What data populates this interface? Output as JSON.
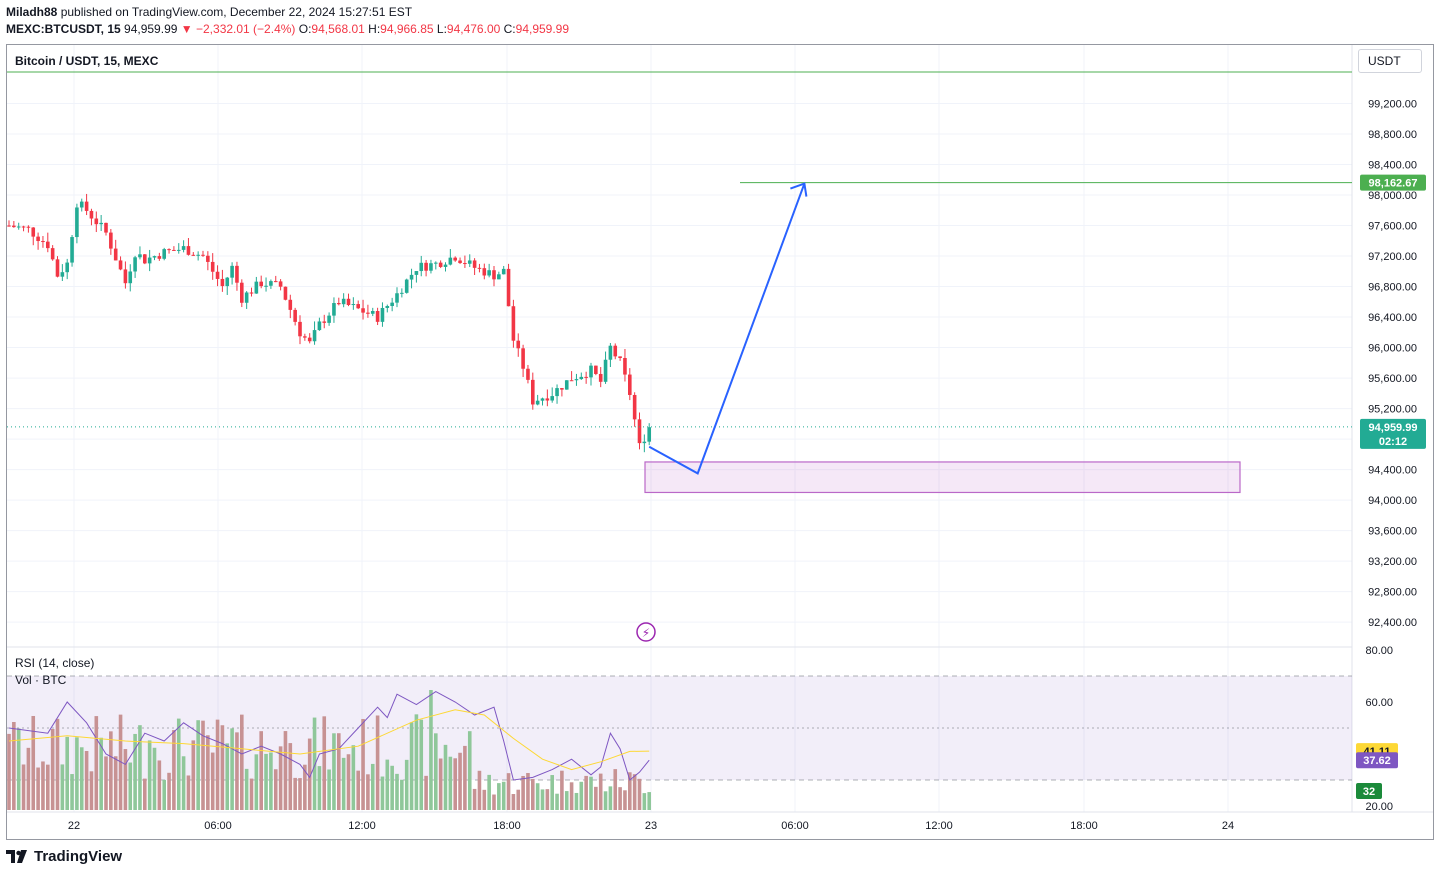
{
  "header": {
    "author": "Miladh88",
    "published": "published on TradingView.com, December 22, 2024 15:27:51 EST",
    "symbol": "MEXC:BTCUSDT, 15",
    "last": "94,959.99",
    "change": "−2,332.01 (−2.4%)",
    "o_label": "O:",
    "o": "94,568.01",
    "h_label": "H:",
    "h": "94,966.85",
    "l_label": "L:",
    "l": "94,476.00",
    "c_label": "C:",
    "c": "94,959.99"
  },
  "legend": {
    "title": "Bitcoin / USDT, 15, MEXC",
    "currency": "USDT"
  },
  "indicators": {
    "rsi": "RSI (14, close)",
    "vol": "Vol · BTC"
  },
  "price_labels": {
    "target": "98,162.67",
    "current": "94,959.99",
    "countdown": "02:12"
  },
  "rsi_labels": {
    "ma": "41.11",
    "rsi": "37.62",
    "vol": "32"
  },
  "footer": {
    "brand": "TradingView"
  },
  "colors": {
    "up": "#22ab94",
    "down": "#f23645",
    "drawing": "#2962ff",
    "box": "#ba68c8",
    "target_line": "#4caf50",
    "rsi_line": "#7e57c2",
    "rsi_ma": "#fdd835"
  },
  "chart_data": [
    {
      "type": "candlestick",
      "title": "Bitcoin / USDT, 15, MEXC",
      "x_ticks": [
        "22",
        "06:00",
        "12:00",
        "18:00",
        "23",
        "06:00",
        "12:00",
        "18:00",
        "24"
      ],
      "y_ticks": [
        92400,
        92800,
        93200,
        93600,
        94000,
        94400,
        94800,
        95200,
        95600,
        96000,
        96400,
        96800,
        97200,
        97600,
        98000,
        98400,
        98800,
        99200
      ],
      "ylim": [
        92100,
        99600
      ],
      "close_path": [
        [
          0,
          97600
        ],
        [
          4,
          97550
        ],
        [
          8,
          97350
        ],
        [
          10,
          96950
        ],
        [
          12,
          97100
        ],
        [
          14,
          97900
        ],
        [
          16,
          97800
        ],
        [
          20,
          97500
        ],
        [
          24,
          96850
        ],
        [
          26,
          97250
        ],
        [
          28,
          97150
        ],
        [
          32,
          97250
        ],
        [
          36,
          97300
        ],
        [
          40,
          97200
        ],
        [
          44,
          96800
        ],
        [
          46,
          97050
        ],
        [
          48,
          96650
        ],
        [
          52,
          96850
        ],
        [
          56,
          96800
        ],
        [
          60,
          96200
        ],
        [
          62,
          96050
        ],
        [
          64,
          96300
        ],
        [
          68,
          96600
        ],
        [
          72,
          96500
        ],
        [
          76,
          96400
        ],
        [
          80,
          96700
        ],
        [
          84,
          97050
        ],
        [
          88,
          97100
        ],
        [
          92,
          97200
        ],
        [
          96,
          97050
        ],
        [
          100,
          96950
        ],
        [
          102,
          97000
        ],
        [
          104,
          96100
        ],
        [
          106,
          95750
        ],
        [
          108,
          95300
        ],
        [
          112,
          95400
        ],
        [
          116,
          95600
        ],
        [
          120,
          95700
        ],
        [
          122,
          95550
        ],
        [
          124,
          96000
        ],
        [
          126,
          95800
        ],
        [
          128,
          95400
        ],
        [
          130,
          94700
        ],
        [
          132,
          94960
        ]
      ],
      "target_level": 98162.67,
      "current_price": 94959.99,
      "demand_zone": [
        94100,
        94500
      ],
      "projection": [
        [
          132,
          94700
        ],
        [
          142,
          94350
        ],
        [
          164,
          98150
        ]
      ]
    },
    {
      "type": "line",
      "title": "RSI (14, close)",
      "ylim": [
        20,
        80
      ],
      "y_ticks": [
        20,
        60,
        80
      ],
      "bands": [
        30,
        50,
        70
      ],
      "rsi_last": 37.62,
      "ma_last": 41.11,
      "rsi": [
        [
          0,
          50
        ],
        [
          8,
          48
        ],
        [
          12,
          60
        ],
        [
          16,
          52
        ],
        [
          20,
          40
        ],
        [
          24,
          36
        ],
        [
          28,
          48
        ],
        [
          32,
          45
        ],
        [
          36,
          52
        ],
        [
          40,
          47
        ],
        [
          44,
          44
        ],
        [
          48,
          40
        ],
        [
          52,
          43
        ],
        [
          56,
          40
        ],
        [
          60,
          36
        ],
        [
          62,
          31
        ],
        [
          64,
          40
        ],
        [
          68,
          42
        ],
        [
          72,
          50
        ],
        [
          76,
          58
        ],
        [
          78,
          54
        ],
        [
          80,
          63
        ],
        [
          84,
          59
        ],
        [
          88,
          64
        ],
        [
          92,
          60
        ],
        [
          96,
          55
        ],
        [
          100,
          58
        ],
        [
          102,
          45
        ],
        [
          104,
          30
        ],
        [
          108,
          31
        ],
        [
          112,
          34
        ],
        [
          116,
          38
        ],
        [
          120,
          32
        ],
        [
          122,
          35
        ],
        [
          124,
          48
        ],
        [
          126,
          42
        ],
        [
          128,
          30
        ],
        [
          130,
          33
        ],
        [
          132,
          37.62
        ]
      ],
      "rsi_ma": [
        [
          0,
          45
        ],
        [
          12,
          47
        ],
        [
          24,
          45
        ],
        [
          36,
          44
        ],
        [
          48,
          42
        ],
        [
          60,
          40
        ],
        [
          72,
          43
        ],
        [
          84,
          53
        ],
        [
          92,
          57
        ],
        [
          98,
          55
        ],
        [
          104,
          46
        ],
        [
          110,
          38
        ],
        [
          116,
          34
        ],
        [
          122,
          37
        ],
        [
          128,
          41
        ],
        [
          132,
          41.11
        ]
      ],
      "volume_last": 32
    }
  ]
}
